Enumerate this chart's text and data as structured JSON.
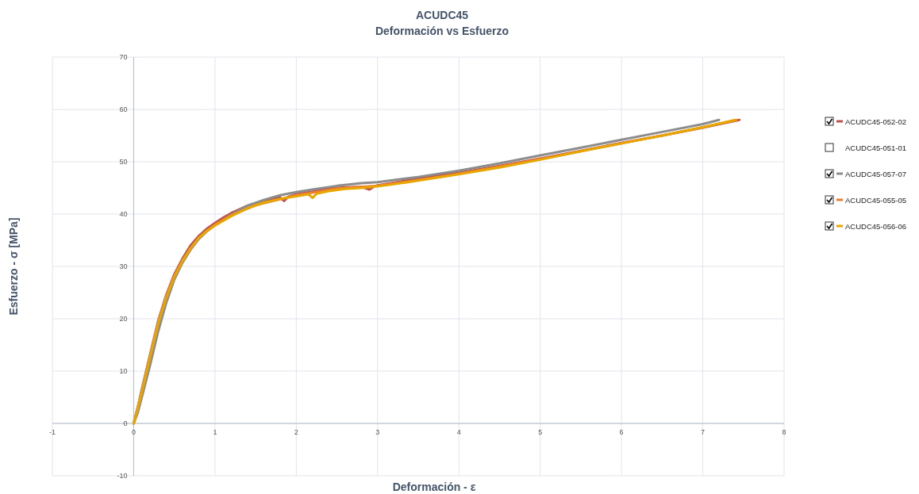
{
  "chart_data": {
    "type": "line",
    "title": "ACUDC45",
    "subtitle": "Deformación vs Esfuerzo",
    "xlabel": "Deformación - ε",
    "ylabel": "Esfuerzo - σ [MPa]",
    "xlim": [
      -1,
      8
    ],
    "xticks": [
      -1,
      0,
      1,
      2,
      3,
      4,
      5,
      6,
      7,
      8
    ],
    "ylim": [
      -10,
      70
    ],
    "yticks": [
      -10,
      0,
      10,
      20,
      30,
      40,
      50,
      60,
      70
    ],
    "grid": true,
    "legend": "right",
    "series": [
      {
        "name": "ACUDC45-052-02",
        "color": "#c0504d",
        "x": [
          0,
          0.05,
          0.1,
          0.2,
          0.3,
          0.4,
          0.5,
          0.6,
          0.7,
          0.8,
          0.9,
          1.0,
          1.1,
          1.2,
          1.4,
          1.6,
          1.8,
          1.85,
          1.9,
          2.0,
          2.2,
          2.4,
          2.6,
          2.8,
          2.9,
          2.95,
          3.0,
          3.2,
          3.5,
          4.0,
          4.5,
          5.0,
          5.5,
          6.0,
          6.5,
          7.0,
          7.45
        ],
        "values": [
          0,
          3,
          6.5,
          13,
          19.5,
          24.5,
          28.5,
          31.5,
          34,
          35.8,
          37.2,
          38.3,
          39.3,
          40.2,
          41.6,
          42.6,
          43.2,
          42.5,
          43.3,
          43.8,
          44.3,
          44.9,
          45.1,
          45.2,
          44.7,
          45.2,
          45.5,
          46,
          46.8,
          47.9,
          49.2,
          50.6,
          52.1,
          53.6,
          55.0,
          56.5,
          58
        ]
      },
      {
        "name": "ACUDC45-051-01"
      },
      {
        "name": "ACUDC45-057-07",
        "color": "#8c8c8c",
        "x": [
          0,
          0.05,
          0.1,
          0.2,
          0.3,
          0.4,
          0.5,
          0.6,
          0.7,
          0.8,
          0.9,
          1.0,
          1.2,
          1.4,
          1.6,
          1.8,
          2.0,
          2.2,
          2.5,
          2.8,
          3.0,
          3.5,
          4.0,
          4.5,
          5.0,
          5.5,
          6.0,
          6.5,
          7.0,
          7.2
        ],
        "values": [
          0,
          2,
          5,
          11,
          17.5,
          23,
          27.5,
          30.7,
          33.2,
          35.2,
          36.7,
          37.9,
          39.9,
          41.6,
          42.7,
          43.6,
          44.2,
          44.7,
          45.4,
          45.9,
          46.1,
          47.1,
          48.3,
          49.7,
          51.2,
          52.7,
          54.2,
          55.7,
          57.2,
          58
        ]
      },
      {
        "name": "ACUDC45-055-05",
        "color": "#ed7d31",
        "x": [
          0,
          0.1,
          0.2,
          0.3,
          0.4,
          0.5,
          0.6,
          0.8,
          1.0,
          1.2,
          1.5,
          2.0,
          2.5,
          3.0,
          3.5,
          4.0,
          5.0,
          6.0,
          7.0,
          7.42
        ],
        "values": [
          0,
          6.2,
          12.8,
          19.2,
          24.2,
          28.2,
          31.2,
          35.5,
          38,
          39.8,
          41.7,
          43.6,
          44.9,
          45.4,
          46.5,
          47.7,
          50.5,
          53.5,
          56.6,
          58
        ]
      },
      {
        "name": "ACUDC45-056-06",
        "color": "#e6a800",
        "x": [
          0,
          0.05,
          0.1,
          0.2,
          0.3,
          0.4,
          0.5,
          0.6,
          0.7,
          0.8,
          0.9,
          1.0,
          1.2,
          1.4,
          1.6,
          1.8,
          2.0,
          2.15,
          2.2,
          2.25,
          2.4,
          2.6,
          2.8,
          3.0,
          3.2,
          3.5,
          4.0,
          4.5,
          5.0,
          5.5,
          6.0,
          6.5,
          7.0,
          7.4
        ],
        "values": [
          0,
          2.8,
          6,
          12.5,
          19,
          24,
          28,
          31,
          33.5,
          35.4,
          36.8,
          37.8,
          39.6,
          41.1,
          42.2,
          42.9,
          43.4,
          43.8,
          43.1,
          43.9,
          44.4,
          44.8,
          45.0,
          45.3,
          45.7,
          46.4,
          47.6,
          48.9,
          50.4,
          52,
          53.5,
          55.0,
          56.6,
          58
        ]
      }
    ]
  }
}
